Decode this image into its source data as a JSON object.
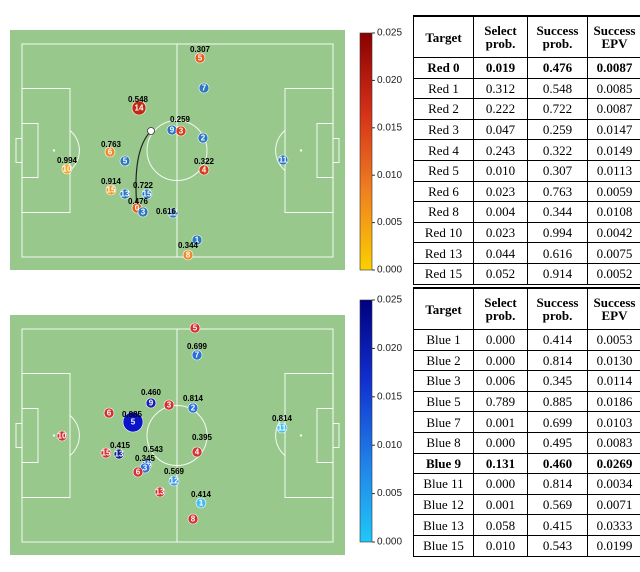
{
  "panels": [
    {
      "players": [
        {
          "number": "5",
          "label": "0.307",
          "color": "#e85a1e"
        },
        {
          "number": "7",
          "label": null,
          "color": "#2b78c2"
        },
        {
          "number": "14",
          "label": "0.548",
          "color": "#c02a10"
        },
        {
          "number": "9",
          "label": "0.259",
          "color": "#2b78c2"
        },
        {
          "number": "3",
          "label": null,
          "color": "#d93a18"
        },
        {
          "number": "2",
          "label": null,
          "color": "#2b78c2"
        },
        {
          "number": "6",
          "label": "0.763",
          "color": "#f08a28"
        },
        {
          "number": "5",
          "label": null,
          "color": "#2b78c2"
        },
        {
          "number": "10",
          "label": "0.994",
          "color": "#f5a623"
        },
        {
          "number": "11",
          "label": null,
          "color": "#2b78c2"
        },
        {
          "number": "4",
          "label": "0.322",
          "color": "#d63a1a"
        },
        {
          "number": "15",
          "label": "0.914",
          "color": "#f29b2a"
        },
        {
          "number": "13",
          "label": null,
          "color": "#2b78c2"
        },
        {
          "number": "15",
          "label": "0.722",
          "color": "#2b78c2"
        },
        {
          "number": "0",
          "label": "0.476",
          "color": "#e0601e"
        },
        {
          "number": "3",
          "label": null,
          "color": "#2b78c2"
        },
        {
          "number": "12",
          "label": "0.616",
          "color": "#2b78c2"
        },
        {
          "number": "1",
          "label": null,
          "color": "#2b78c2"
        },
        {
          "number": "8",
          "label": "0.344",
          "color": "#f08a28"
        }
      ],
      "colorbar": {
        "colors": [
          "#fbd000",
          "#f08020",
          "#d43018",
          "#8a0000"
        ],
        "ticks": [
          {
            "value": 0.0,
            "label": "0.000"
          },
          0.005,
          {
            "value": 0.01,
            "label": "0.010"
          },
          0.015,
          {
            "value": 0.02,
            "label": "0.020"
          },
          0.025
        ]
      },
      "table": {
        "header": [
          "Target",
          "Select prob.",
          "Success prob.",
          "Success EPV"
        ],
        "bold_row": 0,
        "rows": [
          [
            "Red 0",
            "0.019",
            "0.476",
            "0.0087"
          ],
          [
            "Red 1",
            "0.312",
            "0.548",
            "0.0085"
          ],
          [
            "Red 2",
            "0.222",
            "0.722",
            "0.0087"
          ],
          [
            "Red 3",
            "0.047",
            "0.259",
            "0.0147"
          ],
          [
            "Red 4",
            "0.243",
            "0.322",
            "0.0149"
          ],
          [
            "Red 5",
            "0.010",
            "0.307",
            "0.0113"
          ],
          [
            "Red 6",
            "0.023",
            "0.763",
            "0.0059"
          ],
          [
            "Red 8",
            "0.004",
            "0.344",
            "0.0108"
          ],
          [
            "Red 10",
            "0.023",
            "0.994",
            "0.0042"
          ],
          [
            "Red 13",
            "0.044",
            "0.616",
            "0.0075"
          ],
          [
            "Red 15",
            "0.052",
            "0.914",
            "0.0052"
          ]
        ]
      }
    },
    {
      "players": [
        {
          "number": "5",
          "label": null,
          "color": "#d33030"
        },
        {
          "number": "7",
          "label": "0.699",
          "color": "#2a6fd8"
        },
        {
          "number": "9",
          "label": "0.460",
          "color": "#1a20b0"
        },
        {
          "number": "3",
          "label": null,
          "color": "#d33030"
        },
        {
          "number": "2",
          "label": "0.814",
          "color": "#2a6fd8"
        },
        {
          "number": "6",
          "label": null,
          "color": "#d33030"
        },
        {
          "number": "5",
          "label": "0.885",
          "color": "#0a14c8"
        },
        {
          "number": "10",
          "label": null,
          "color": "#d33030"
        },
        {
          "number": "11",
          "label": "0.814",
          "color": "#48bff0"
        },
        {
          "number": "4",
          "label": "0.395",
          "color": "#d33030"
        },
        {
          "number": "15",
          "label": null,
          "color": "#d33030"
        },
        {
          "number": "13",
          "label": "0.415",
          "color": "#10208a"
        },
        {
          "number": "15",
          "label": "0.543",
          "color": "#2a6fd8"
        },
        {
          "number": "3",
          "label": "0.345",
          "color": "#2a6fd8"
        },
        {
          "number": "6",
          "label": null,
          "color": "#d33030"
        },
        {
          "number": "12",
          "label": "0.569",
          "color": "#3a9ae8"
        },
        {
          "number": "13",
          "label": null,
          "color": "#d33030"
        },
        {
          "number": "1",
          "label": "0.414",
          "color": "#48bff0"
        },
        {
          "number": "8",
          "label": null,
          "color": "#d33030"
        }
      ],
      "colorbar": {
        "colors": [
          "#20c8f8",
          "#2080e8",
          "#1030d0",
          "#000080"
        ],
        "ticks": [
          {
            "value": 0.0,
            "label": "0.000"
          },
          0.005,
          {
            "value": 0.01,
            "label": "0.010"
          },
          0.015,
          {
            "value": 0.02,
            "label": "0.020"
          },
          0.025
        ]
      },
      "table": {
        "header": [
          "Target",
          "Select prob.",
          "Success prob.",
          "Success EPV"
        ],
        "bold_row": 6,
        "rows": [
          [
            "Blue 1",
            "0.000",
            "0.414",
            "0.0053"
          ],
          [
            "Blue 2",
            "0.000",
            "0.814",
            "0.0130"
          ],
          [
            "Blue 3",
            "0.006",
            "0.345",
            "0.0114"
          ],
          [
            "Blue 5",
            "0.789",
            "0.885",
            "0.0186"
          ],
          [
            "Blue 7",
            "0.001",
            "0.699",
            "0.0103"
          ],
          [
            "Blue 8",
            "0.000",
            "0.495",
            "0.0083"
          ],
          [
            "Blue 9",
            "0.131",
            "0.460",
            "0.0269"
          ],
          [
            "Blue 11",
            "0.000",
            "0.814",
            "0.0034"
          ],
          [
            "Blue 12",
            "0.001",
            "0.569",
            "0.0071"
          ],
          [
            "Blue 13",
            "0.058",
            "0.415",
            "0.0333"
          ],
          [
            "Blue 15",
            "0.010",
            "0.543",
            "0.0199"
          ]
        ]
      }
    }
  ]
}
